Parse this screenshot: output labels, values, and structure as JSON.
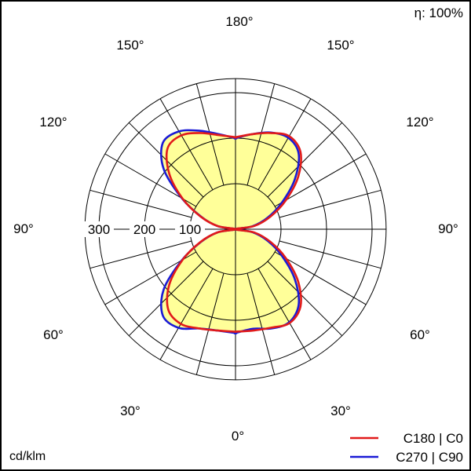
{
  "chart_data": {
    "type": "polar",
    "efficiency_label": "η: 100%",
    "unit_label": "cd/klm",
    "radial_ticks": [
      {
        "value": 100,
        "label": "100"
      },
      {
        "value": 200,
        "label": "200"
      },
      {
        "value": 300,
        "label": "300"
      }
    ],
    "radial_max": 330,
    "angle_labels": {
      "top": "180°",
      "upper_left": "150°",
      "upper_right": "150°",
      "mid_upper_left": "120°",
      "mid_upper_right": "120°",
      "left": "90°",
      "right": "90°",
      "mid_lower_left": "60°",
      "mid_lower_right": "60°",
      "lower_left": "30°",
      "lower_right": "30°",
      "bottom": "0°"
    },
    "series": [
      {
        "name": "C180 | C0",
        "color": "#e11a1a",
        "angles": [
          0,
          10,
          20,
          30,
          40,
          50,
          60,
          70,
          80,
          90,
          100,
          110,
          120,
          130,
          140,
          150,
          160,
          170,
          180
        ],
        "right_values": [
          225,
          226,
          230,
          238,
          222,
          180,
          128,
          82,
          42,
          0,
          42,
          82,
          128,
          180,
          222,
          236,
          225,
          212,
          202
        ],
        "left_values": [
          225,
          226,
          232,
          240,
          230,
          190,
          134,
          82,
          40,
          0,
          40,
          82,
          134,
          190,
          232,
          238,
          225,
          210,
          202
        ]
      },
      {
        "name": "C270 | C90",
        "color": "#1a1ad6",
        "angles": [
          0,
          10,
          20,
          30,
          40,
          50,
          60,
          70,
          80,
          90,
          100,
          110,
          120,
          130,
          140,
          150,
          160,
          170,
          180
        ],
        "right_values": [
          228,
          222,
          232,
          236,
          216,
          170,
          118,
          76,
          38,
          0,
          38,
          76,
          118,
          170,
          216,
          232,
          226,
          212,
          200
        ],
        "left_values": [
          228,
          226,
          232,
          250,
          248,
          206,
          136,
          80,
          40,
          0,
          40,
          80,
          136,
          206,
          248,
          248,
          230,
          212,
          200
        ]
      }
    ]
  },
  "legend": {
    "items": [
      {
        "label": "C180 | C0",
        "color": "#e11a1a"
      },
      {
        "label": "C270 | C90",
        "color": "#1a1ad6"
      }
    ]
  },
  "colors": {
    "fill": "#ffff99",
    "grid": "#000000",
    "border": "#000000"
  }
}
